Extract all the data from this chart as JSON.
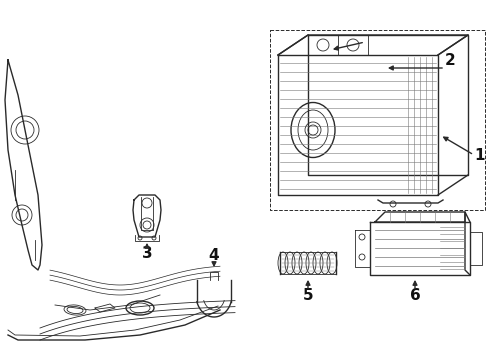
{
  "bg_color": "#ffffff",
  "line_color": "#2a2a2a",
  "label_color": "#111111",
  "gray": "#777777",
  "light_gray": "#aaaaaa"
}
